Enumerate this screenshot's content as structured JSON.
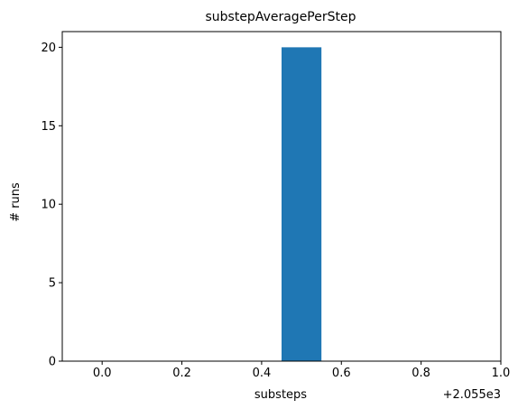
{
  "chart_data": {
    "type": "bar",
    "title": "substepAveragePerStep",
    "xlabel": "substeps",
    "ylabel": "# runs",
    "x_offset_label": "+2.055e3",
    "xlim": [
      -0.1,
      1.0
    ],
    "ylim": [
      0,
      21
    ],
    "x_ticks": [
      0.0,
      0.2,
      0.4,
      0.6,
      0.8,
      1.0
    ],
    "x_tick_labels": [
      "0.0",
      "0.2",
      "0.4",
      "0.6",
      "0.8",
      "1.0"
    ],
    "y_ticks": [
      0,
      5,
      10,
      15,
      20
    ],
    "y_tick_labels": [
      "0",
      "5",
      "10",
      "15",
      "20"
    ],
    "bars": [
      {
        "x_start": 0.45,
        "x_end": 0.55,
        "value": 20
      }
    ],
    "bar_color": "#1f77b4",
    "grid": false
  }
}
